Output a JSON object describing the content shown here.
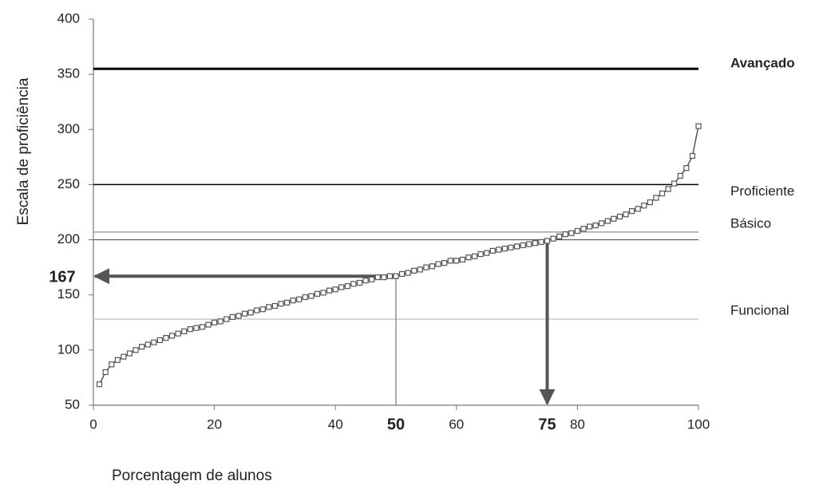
{
  "chart_data": {
    "type": "line",
    "xlabel": "Porcentagem de alunos",
    "ylabel": "Escala de proficiência",
    "x": [
      1,
      2,
      3,
      4,
      5,
      6,
      7,
      8,
      9,
      10,
      11,
      12,
      13,
      14,
      15,
      16,
      17,
      18,
      19,
      20,
      21,
      22,
      23,
      24,
      25,
      26,
      27,
      28,
      29,
      30,
      31,
      32,
      33,
      34,
      35,
      36,
      37,
      38,
      39,
      40,
      41,
      42,
      43,
      44,
      45,
      46,
      47,
      48,
      49,
      50,
      51,
      52,
      53,
      54,
      55,
      56,
      57,
      58,
      59,
      60,
      61,
      62,
      63,
      64,
      65,
      66,
      67,
      68,
      69,
      70,
      71,
      72,
      73,
      74,
      75,
      76,
      77,
      78,
      79,
      80,
      81,
      82,
      83,
      84,
      85,
      86,
      87,
      88,
      89,
      90,
      91,
      92,
      93,
      94,
      95,
      96,
      97,
      98,
      99,
      100
    ],
    "values": [
      69,
      80,
      87,
      91,
      94,
      97,
      100,
      103,
      105,
      107,
      109,
      111,
      113,
      115,
      117,
      119,
      120,
      121,
      123,
      125,
      126,
      128,
      130,
      131,
      133,
      134,
      136,
      137,
      139,
      140,
      142,
      143,
      145,
      146,
      148,
      149,
      151,
      152,
      154,
      155,
      157,
      158,
      160,
      161,
      163,
      164,
      166,
      166,
      167,
      167,
      169,
      170,
      172,
      173,
      175,
      176,
      178,
      179,
      181,
      181,
      182,
      184,
      185,
      187,
      188,
      190,
      191,
      192,
      193,
      194,
      195,
      196,
      197,
      198,
      199,
      201,
      203,
      205,
      206,
      208,
      210,
      212,
      213,
      215,
      217,
      219,
      221,
      223,
      226,
      228,
      231,
      234,
      238,
      242,
      246,
      251,
      258,
      265,
      276,
      303
    ],
    "color": "#555555",
    "xlim": [
      0,
      100
    ],
    "xticks": [
      0,
      20,
      40,
      60,
      80,
      100
    ],
    "ylim": [
      50,
      400
    ],
    "yticks": [
      50,
      100,
      150,
      200,
      250,
      300,
      350,
      400
    ],
    "reference_lines": [
      {
        "value": 355,
        "label": "Avançado",
        "color": "#000000",
        "line_width": 3
      },
      {
        "value": 250,
        "label": "Proficiente",
        "color": "#000000",
        "line_width": 1.5
      },
      {
        "value": 207,
        "label": "Básico",
        "color": "#a0a0a0",
        "line_width": 1.5
      },
      {
        "value": 200,
        "color": "#555555",
        "line_width": 1.2
      },
      {
        "value": 128,
        "label": "Funcional",
        "color": "#cccccc",
        "line_width": 1.5
      }
    ],
    "markers": [
      {
        "x": 50,
        "y": 167,
        "arrow": "left"
      },
      {
        "x": 75,
        "y": 199,
        "arrow": "down"
      }
    ]
  }
}
